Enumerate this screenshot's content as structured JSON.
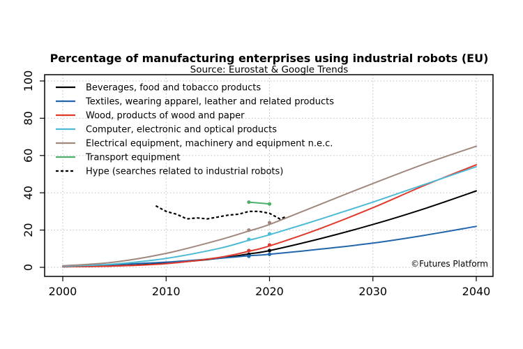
{
  "chart_data": {
    "type": "line",
    "title": "Percentage of manufacturing enterprises using industrial robots (EU)",
    "subtitle": "Source: Eurostat & Google Trends",
    "credit": "©Futures Platform",
    "xlim": [
      2000,
      2040
    ],
    "ylim": [
      0,
      100
    ],
    "x_ticks": [
      2000,
      2010,
      2020,
      2030,
      2040
    ],
    "y_ticks": [
      0,
      20,
      40,
      60,
      80,
      100
    ],
    "grid": true,
    "legend_position": "top-left",
    "series": [
      {
        "name": "Beverages, food and tobacco products",
        "color": "#000000",
        "style": "solid",
        "curve": {
          "x": [
            2000,
            2005,
            2010,
            2015,
            2018,
            2020,
            2025,
            2030,
            2035,
            2040
          ],
          "y": [
            0.3,
            0.8,
            2.2,
            4.8,
            7.2,
            9.0,
            15.5,
            23.0,
            31.5,
            41.0
          ]
        },
        "observed": {
          "x": [
            2018,
            2020
          ],
          "y": [
            7,
            9
          ]
        }
      },
      {
        "name": "Textiles, wearing apparel, leather and related products",
        "color": "#2166AC",
        "style": "solid",
        "curve": {
          "x": [
            2000,
            2005,
            2010,
            2015,
            2018,
            2020,
            2025,
            2030,
            2035,
            2040
          ],
          "y": [
            0.8,
            1.5,
            2.8,
            4.8,
            6.2,
            7.0,
            9.8,
            13.0,
            17.2,
            22.0
          ]
        },
        "observed": {
          "x": [
            2018,
            2020
          ],
          "y": [
            6,
            7
          ]
        }
      },
      {
        "name": "Wood, products of wood and paper",
        "color": "#E0392B",
        "style": "solid",
        "curve": {
          "x": [
            2000,
            2005,
            2010,
            2015,
            2018,
            2020,
            2025,
            2030,
            2035,
            2040
          ],
          "y": [
            0.3,
            0.7,
            2.0,
            5.2,
            8.6,
            11.5,
            21.0,
            32.0,
            44.0,
            55.0
          ]
        },
        "observed": {
          "x": [
            2018,
            2020
          ],
          "y": [
            9,
            12
          ]
        }
      },
      {
        "name": "Computer, electronic and optical products",
        "color": "#4DBBD5",
        "style": "solid",
        "curve": {
          "x": [
            2000,
            2005,
            2010,
            2015,
            2018,
            2020,
            2025,
            2030,
            2035,
            2040
          ],
          "y": [
            0.5,
            1.8,
            4.8,
            10.0,
            14.5,
            17.5,
            26.0,
            35.0,
            44.5,
            54.0
          ]
        },
        "observed": {
          "x": [
            2018,
            2020
          ],
          "y": [
            15,
            18
          ]
        }
      },
      {
        "name": "Electrical equipment, machinery and equipment n.e.c.",
        "color": "#A1887F",
        "style": "solid",
        "curve": {
          "x": [
            2000,
            2005,
            2010,
            2015,
            2018,
            2020,
            2025,
            2030,
            2035,
            2040
          ],
          "y": [
            0.8,
            2.8,
            7.5,
            14.5,
            19.5,
            23.0,
            34.0,
            45.0,
            55.5,
            65.0
          ]
        },
        "observed": {
          "x": [
            2018,
            2020
          ],
          "y": [
            20,
            24
          ]
        }
      },
      {
        "name": "Transport equipment",
        "color": "#4DAF6A",
        "style": "solid",
        "curve": {
          "x": [
            2018,
            2020
          ],
          "y": [
            35,
            34
          ]
        },
        "observed": {
          "x": [
            2018,
            2020
          ],
          "y": [
            35,
            34
          ]
        }
      },
      {
        "name": "Hype (searches related to industrial robots)",
        "color": "#000000",
        "style": "dashed",
        "curve": {
          "x": [
            2009,
            2010,
            2011,
            2012,
            2013,
            2014,
            2015,
            2016,
            2017,
            2018,
            2019,
            2020,
            2021,
            2021.5
          ],
          "y": [
            33,
            30,
            28.5,
            26,
            26.5,
            26,
            27,
            28,
            28.5,
            30,
            30,
            29,
            26,
            27
          ]
        },
        "observed": {
          "x": [],
          "y": []
        }
      }
    ]
  }
}
